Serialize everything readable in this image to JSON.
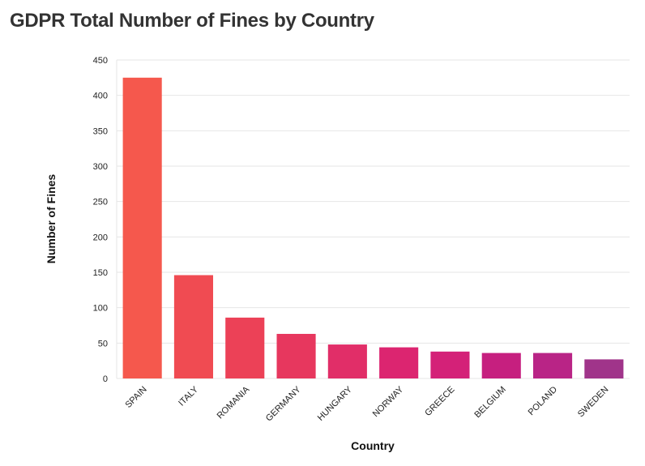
{
  "chart_data": {
    "type": "bar",
    "title": "GDPR Total Number of Fines by Country",
    "xlabel": "Country",
    "ylabel": "Number of Fines",
    "categories": [
      "SPAIN",
      "ITALY",
      "ROMANIA",
      "GERMANY",
      "HUNGARY",
      "NORWAY",
      "GREECE",
      "BELGIUM",
      "POLAND",
      "SWEDEN"
    ],
    "values": [
      425,
      146,
      86,
      63,
      48,
      44,
      38,
      36,
      36,
      27
    ],
    "ylim": [
      0,
      450
    ],
    "yticks": [
      0,
      50,
      100,
      150,
      200,
      250,
      300,
      350,
      400,
      450
    ],
    "grid": true,
    "colors": [
      "#f5584d",
      "#f04b52",
      "#ec4157",
      "#e7375e",
      "#e12e68",
      "#dc2570",
      "#d42178",
      "#c61f7f",
      "#b92486",
      "#a0348a"
    ]
  }
}
